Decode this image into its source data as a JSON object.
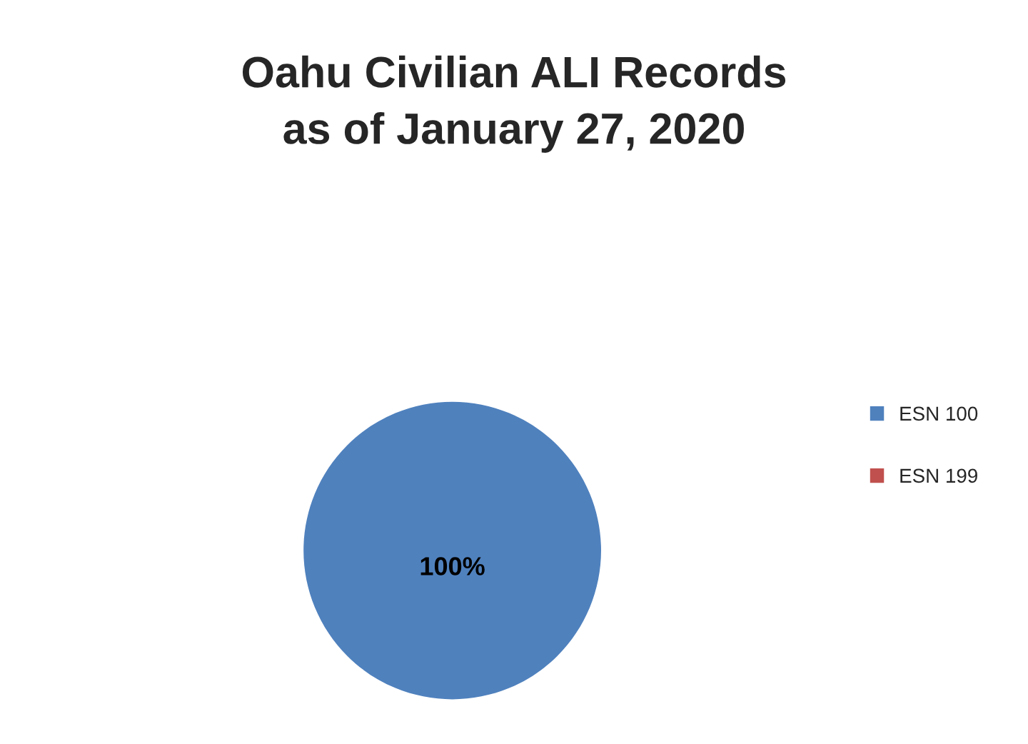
{
  "chart_data": {
    "type": "pie",
    "title": "Oahu Civilian ALI Records\nas of January 27, 2020",
    "categories": [
      "ESN 100",
      "ESN 199"
    ],
    "values": [
      100,
      0
    ],
    "colors": [
      "#4f81bd",
      "#c0504d"
    ],
    "value_labels": [
      "100%",
      null
    ],
    "legend": "right"
  }
}
